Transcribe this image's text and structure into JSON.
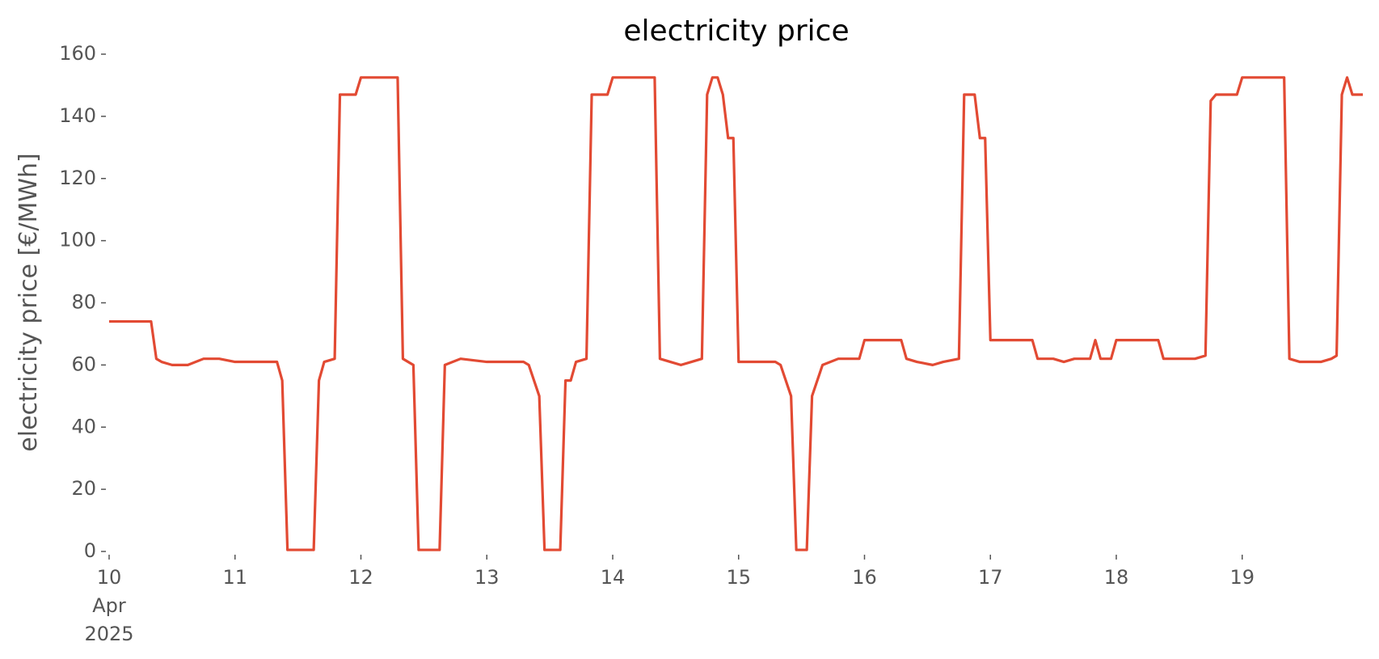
{
  "chart_data": {
    "type": "line",
    "title": "electricity price",
    "ylabel": "electricity price [€/MWh]",
    "x": [
      "2025-04-10 00:00",
      "2025-04-10 08:00",
      "2025-04-10 09:00",
      "2025-04-10 10:00",
      "2025-04-10 12:00",
      "2025-04-10 15:00",
      "2025-04-10 18:00",
      "2025-04-10 21:00",
      "2025-04-11 00:00",
      "2025-04-11 08:00",
      "2025-04-11 09:00",
      "2025-04-11 10:00",
      "2025-04-11 15:00",
      "2025-04-11 16:00",
      "2025-04-11 17:00",
      "2025-04-11 19:00",
      "2025-04-11 20:00",
      "2025-04-11 23:00",
      "2025-04-12 00:00",
      "2025-04-12 07:00",
      "2025-04-12 08:00",
      "2025-04-12 10:00",
      "2025-04-12 11:00",
      "2025-04-12 15:00",
      "2025-04-12 16:00",
      "2025-04-12 19:00",
      "2025-04-13 00:00",
      "2025-04-13 07:00",
      "2025-04-13 08:00",
      "2025-04-13 10:00",
      "2025-04-13 11:00",
      "2025-04-13 14:00",
      "2025-04-13 15:00",
      "2025-04-13 16:00",
      "2025-04-13 17:00",
      "2025-04-13 19:00",
      "2025-04-13 20:00",
      "2025-04-13 23:00",
      "2025-04-14 00:00",
      "2025-04-14 08:00",
      "2025-04-14 09:00",
      "2025-04-14 11:00",
      "2025-04-14 13:00",
      "2025-04-14 15:00",
      "2025-04-14 17:00",
      "2025-04-14 18:00",
      "2025-04-14 19:00",
      "2025-04-14 20:00",
      "2025-04-14 21:00",
      "2025-04-14 22:00",
      "2025-04-14 23:00",
      "2025-04-15 00:00",
      "2025-04-15 07:00",
      "2025-04-15 08:00",
      "2025-04-15 10:00",
      "2025-04-15 11:00",
      "2025-04-15 13:00",
      "2025-04-15 14:00",
      "2025-04-15 16:00",
      "2025-04-15 19:00",
      "2025-04-15 23:00",
      "2025-04-16 00:00",
      "2025-04-16 07:00",
      "2025-04-16 08:00",
      "2025-04-16 10:00",
      "2025-04-16 13:00",
      "2025-04-16 15:00",
      "2025-04-16 18:00",
      "2025-04-16 19:00",
      "2025-04-16 21:00",
      "2025-04-16 22:00",
      "2025-04-16 23:00",
      "2025-04-17 00:00",
      "2025-04-17 08:00",
      "2025-04-17 09:00",
      "2025-04-17 12:00",
      "2025-04-17 14:00",
      "2025-04-17 16:00",
      "2025-04-17 19:00",
      "2025-04-17 20:00",
      "2025-04-17 21:00",
      "2025-04-17 23:00",
      "2025-04-18 00:00",
      "2025-04-18 08:00",
      "2025-04-18 09:00",
      "2025-04-18 15:00",
      "2025-04-18 17:00",
      "2025-04-18 18:00",
      "2025-04-18 19:00",
      "2025-04-18 23:00",
      "2025-04-19 00:00",
      "2025-04-19 08:00",
      "2025-04-19 09:00",
      "2025-04-19 11:00",
      "2025-04-19 15:00",
      "2025-04-19 17:00",
      "2025-04-19 18:00",
      "2025-04-19 19:00",
      "2025-04-19 20:00",
      "2025-04-19 21:00",
      "2025-04-19 23:00"
    ],
    "series": [
      {
        "name": "electricity price",
        "color": "#e24a33",
        "values": [
          74,
          74,
          62,
          61,
          60,
          60,
          62,
          62,
          61,
          61,
          55,
          0.5,
          0.5,
          55,
          61,
          62,
          147,
          147,
          152.5,
          152.5,
          62,
          60,
          0.5,
          0.5,
          60,
          62,
          61,
          61,
          60,
          50,
          0.5,
          0.5,
          55,
          55,
          61,
          62,
          147,
          147,
          152.5,
          152.5,
          62,
          61,
          60,
          61,
          62,
          147,
          152.5,
          152.5,
          147,
          133,
          133,
          61,
          61,
          60,
          50,
          0.5,
          0.5,
          50,
          60,
          62,
          62,
          68,
          68,
          62,
          61,
          60,
          61,
          62,
          147,
          147,
          133,
          133,
          68,
          68,
          62,
          62,
          61,
          62,
          62,
          68,
          62,
          62,
          68,
          68,
          62,
          62,
          63,
          145,
          147,
          147,
          152.5,
          152.5,
          62,
          61,
          61,
          62,
          63,
          147,
          152.5,
          147,
          147
        ]
      }
    ],
    "xlim": [
      "2025-04-10 00:00",
      "2025-04-19 23:00"
    ],
    "xticks": [
      {
        "value": "2025-04-10 00:00",
        "label": "10\nApr\n2025"
      },
      {
        "value": "2025-04-11 00:00",
        "label": "11"
      },
      {
        "value": "2025-04-12 00:00",
        "label": "12"
      },
      {
        "value": "2025-04-13 00:00",
        "label": "13"
      },
      {
        "value": "2025-04-14 00:00",
        "label": "14"
      },
      {
        "value": "2025-04-15 00:00",
        "label": "15"
      },
      {
        "value": "2025-04-16 00:00",
        "label": "16"
      },
      {
        "value": "2025-04-17 00:00",
        "label": "17"
      },
      {
        "value": "2025-04-18 00:00",
        "label": "18"
      },
      {
        "value": "2025-04-19 00:00",
        "label": "19"
      }
    ],
    "ylim": [
      0,
      160
    ],
    "yticks": [
      0,
      20,
      40,
      60,
      80,
      100,
      120,
      140,
      160
    ],
    "grid": false
  }
}
